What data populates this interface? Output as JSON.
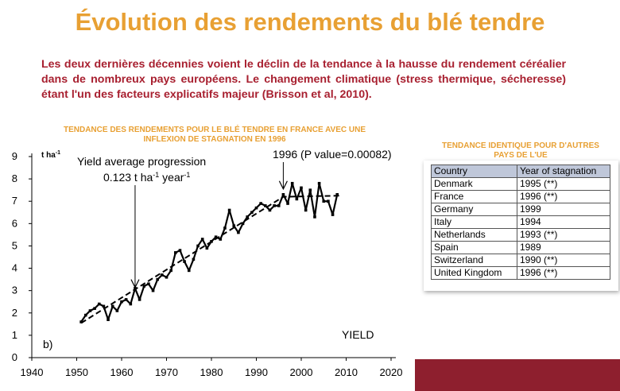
{
  "slide": {
    "title": "Évolution des rendements du blé tendre",
    "intro": "Les deux dernières décennies voient le déclin de la tendance à la hausse du rendement céréalier dans de nombreux pays européens. Le changement climatique (stress thermique, sécheresse)  étant l'un des facteurs explicatifs majeur (Brisson et al, 2010).",
    "chart_caption_line1": "TENDANCE DES RENDEMENTS POUR LE BLÉ TENDRE EN FRANCE AVEC UNE",
    "chart_caption_line2": "INFLEXION DE STAGNATION EN 1996",
    "table_caption_line1": "TENDANCE IDENTIQUE POUR D'AUTRES",
    "table_caption_line2": "PAYS DE L'UE"
  },
  "colors": {
    "title": "#e8a033",
    "intro": "#a82030",
    "band": "#8e1f2e",
    "table_header": "#bfc7d9"
  },
  "chart_data": {
    "type": "line",
    "ylabel_main": "t ha",
    "ylabel_sup": "-1",
    "xlim": [
      1940,
      2020
    ],
    "ylim": [
      0,
      9
    ],
    "x_ticks": [
      1940,
      1950,
      1960,
      1970,
      1980,
      1990,
      2000,
      2010,
      2020
    ],
    "y_ticks": [
      0,
      1,
      2,
      3,
      4,
      5,
      6,
      7,
      8,
      9
    ],
    "panel_label": "b)",
    "series_label": "YIELD",
    "annotation_progress_line1": "Yield average progression",
    "annotation_progress_line2a": "0.123 t ha",
    "annotation_progress_sup1": "-1",
    "annotation_progress_line2b": " year",
    "annotation_progress_sup2": "-1",
    "annotation_progress_arrow": {
      "x": 1963,
      "y": 3.0
    },
    "annotation_stagnation": "1996 (P value=0.00082)",
    "annotation_stagnation_arrow": {
      "x": 1996,
      "y": 7.3
    },
    "series": [
      {
        "values": [
          {
            "x": 1951,
            "y": 1.6
          },
          {
            "x": 1952,
            "y": 1.9
          },
          {
            "x": 1953,
            "y": 2.1
          },
          {
            "x": 1954,
            "y": 2.2
          },
          {
            "x": 1955,
            "y": 2.4
          },
          {
            "x": 1956,
            "y": 2.3
          },
          {
            "x": 1957,
            "y": 1.7
          },
          {
            "x": 1958,
            "y": 2.3
          },
          {
            "x": 1959,
            "y": 2.1
          },
          {
            "x": 1960,
            "y": 2.5
          },
          {
            "x": 1961,
            "y": 2.6
          },
          {
            "x": 1962,
            "y": 2.4
          },
          {
            "x": 1963,
            "y": 3.1
          },
          {
            "x": 1964,
            "y": 2.6
          },
          {
            "x": 1965,
            "y": 3.2
          },
          {
            "x": 1966,
            "y": 3.3
          },
          {
            "x": 1967,
            "y": 3.0
          },
          {
            "x": 1968,
            "y": 3.5
          },
          {
            "x": 1969,
            "y": 3.7
          },
          {
            "x": 1970,
            "y": 3.6
          },
          {
            "x": 1971,
            "y": 3.9
          },
          {
            "x": 1972,
            "y": 4.7
          },
          {
            "x": 1973,
            "y": 4.8
          },
          {
            "x": 1974,
            "y": 4.3
          },
          {
            "x": 1975,
            "y": 3.9
          },
          {
            "x": 1976,
            "y": 4.4
          },
          {
            "x": 1977,
            "y": 5.0
          },
          {
            "x": 1978,
            "y": 5.3
          },
          {
            "x": 1979,
            "y": 4.9
          },
          {
            "x": 1980,
            "y": 5.2
          },
          {
            "x": 1981,
            "y": 5.4
          },
          {
            "x": 1982,
            "y": 5.3
          },
          {
            "x": 1983,
            "y": 5.8
          },
          {
            "x": 1984,
            "y": 6.6
          },
          {
            "x": 1985,
            "y": 5.9
          },
          {
            "x": 1986,
            "y": 5.6
          },
          {
            "x": 1987,
            "y": 6.0
          },
          {
            "x": 1988,
            "y": 6.3
          },
          {
            "x": 1989,
            "y": 6.5
          },
          {
            "x": 1990,
            "y": 6.7
          },
          {
            "x": 1991,
            "y": 6.9
          },
          {
            "x": 1992,
            "y": 6.8
          },
          {
            "x": 1993,
            "y": 6.6
          },
          {
            "x": 1994,
            "y": 6.8
          },
          {
            "x": 1995,
            "y": 6.8
          },
          {
            "x": 1996,
            "y": 7.3
          },
          {
            "x": 1997,
            "y": 6.9
          },
          {
            "x": 1998,
            "y": 7.8
          },
          {
            "x": 1999,
            "y": 7.1
          },
          {
            "x": 2000,
            "y": 7.6
          },
          {
            "x": 2001,
            "y": 6.6
          },
          {
            "x": 2002,
            "y": 7.5
          },
          {
            "x": 2003,
            "y": 6.3
          },
          {
            "x": 2004,
            "y": 7.8
          },
          {
            "x": 2005,
            "y": 7.0
          },
          {
            "x": 2006,
            "y": 7.0
          },
          {
            "x": 2007,
            "y": 6.4
          },
          {
            "x": 2008,
            "y": 7.3
          }
        ]
      }
    ],
    "trend": [
      {
        "x": 1951,
        "y": 1.55
      },
      {
        "x": 1996,
        "y": 7.2
      },
      {
        "x": 2009,
        "y": 7.25
      }
    ]
  },
  "table": {
    "headers": [
      "Country",
      "Year of stagnation"
    ],
    "rows": [
      [
        "Denmark",
        "1995 (**)"
      ],
      [
        "France",
        "1996 (**)"
      ],
      [
        "Germany",
        "1999"
      ],
      [
        "Italy",
        "1994"
      ],
      [
        "Netherlands",
        "1993 (**)"
      ],
      [
        "Spain",
        "1989"
      ],
      [
        "Switzerland",
        "1990 (**)"
      ],
      [
        "United Kingdom",
        "1996 (**)"
      ]
    ]
  }
}
